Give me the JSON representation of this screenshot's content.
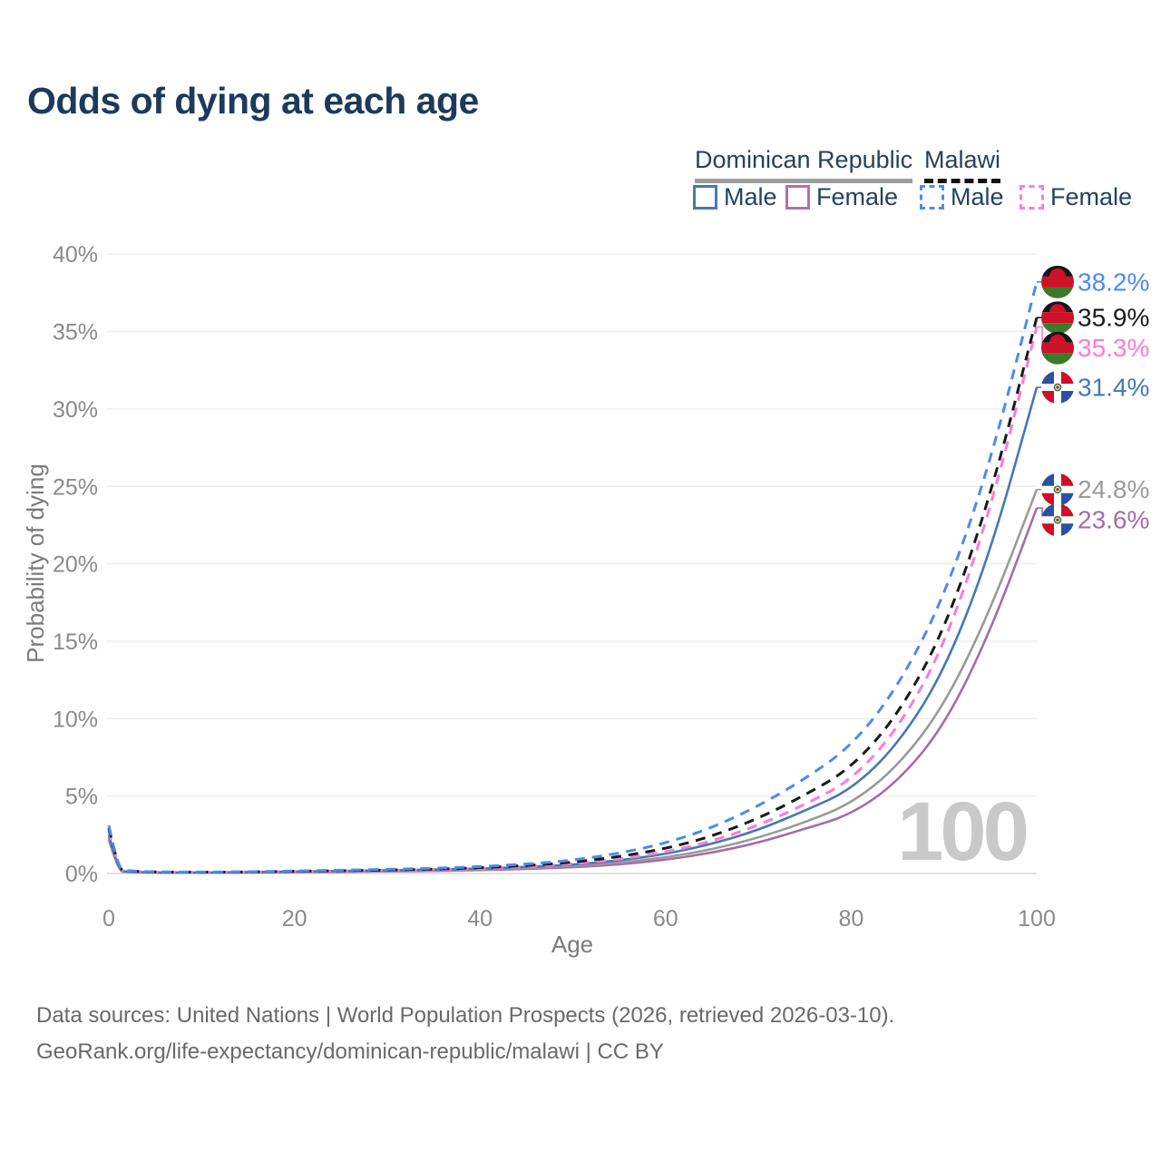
{
  "title": "Odds of dying at each age",
  "legend": {
    "groups": [
      {
        "label": "Dominican Republic",
        "line_style": "solid",
        "line_color": "#9e9e9e",
        "items": [
          {
            "label": "Male",
            "color": "#4678b5",
            "dashed": false
          },
          {
            "label": "Female",
            "color": "#b06fad",
            "dashed": false
          }
        ]
      },
      {
        "label": "Malawi",
        "line_style": "dashed",
        "line_color": "#141414",
        "items": [
          {
            "label": "Male",
            "color": "#4a8cf0",
            "dashed": true
          },
          {
            "label": "Female",
            "color": "#ff7ad9",
            "dashed": true
          }
        ]
      }
    ]
  },
  "watermark": "100",
  "footer": {
    "line1": "Data sources: United Nations | World Population Prospects (2026, retrieved 2026-03-10).",
    "line2": "GeoRank.org/life-expectancy/dominican-republic/malawi | CC BY"
  },
  "chart_data": {
    "type": "line",
    "title": "Odds of dying at each age",
    "xlabel": "Age",
    "ylabel": "Probability of dying",
    "xlim": [
      0,
      100
    ],
    "ylim": [
      0,
      40
    ],
    "x_ticks": [
      0,
      20,
      40,
      60,
      80,
      100
    ],
    "y_ticks": [
      0,
      5,
      10,
      15,
      20,
      25,
      30,
      35,
      40
    ],
    "y_tick_labels": [
      "0%",
      "5%",
      "10%",
      "15%",
      "20%",
      "25%",
      "30%",
      "35%",
      "40%"
    ],
    "grid": "horizontal",
    "legend_position": "top-right",
    "ages": [
      0,
      1,
      2,
      5,
      10,
      15,
      20,
      25,
      30,
      35,
      40,
      45,
      50,
      55,
      60,
      65,
      70,
      75,
      80,
      85,
      90,
      95,
      100
    ],
    "series": [
      {
        "name": "Malawi Male",
        "country": "Malawi",
        "sex": "Male",
        "color": "#4a8cf0",
        "dashed": true,
        "end_label": "38.2%",
        "end_value": 38.2,
        "values": [
          3.1,
          0.28,
          0.17,
          0.1,
          0.09,
          0.11,
          0.16,
          0.21,
          0.27,
          0.33,
          0.44,
          0.6,
          0.85,
          1.3,
          1.95,
          2.95,
          4.35,
          6.1,
          8.2,
          12.0,
          17.8,
          26.5,
          38.2
        ]
      },
      {
        "name": "Malawi Both sexes",
        "country": "Malawi",
        "sex": "Both",
        "color": "#1a1a1a",
        "dashed": true,
        "end_label": "35.9%",
        "end_value": 35.9,
        "values": [
          2.95,
          0.26,
          0.16,
          0.09,
          0.08,
          0.1,
          0.14,
          0.18,
          0.22,
          0.28,
          0.37,
          0.51,
          0.72,
          1.08,
          1.6,
          2.4,
          3.55,
          5.05,
          6.8,
          10.2,
          15.6,
          24.3,
          35.9
        ]
      },
      {
        "name": "Malawi Female",
        "country": "Malawi",
        "sex": "Female",
        "color": "#ff7ad9",
        "dashed": true,
        "end_label": "35.3%",
        "end_value": 35.3,
        "values": [
          2.8,
          0.24,
          0.15,
          0.09,
          0.075,
          0.09,
          0.12,
          0.15,
          0.19,
          0.24,
          0.32,
          0.44,
          0.62,
          0.92,
          1.38,
          2.08,
          3.1,
          4.45,
          6.0,
          9.3,
          14.6,
          23.4,
          35.3
        ]
      },
      {
        "name": "Dominican Republic Male",
        "country": "Dominican Republic",
        "sex": "Male",
        "color": "#4678b5",
        "dashed": false,
        "end_label": "31.4%",
        "end_value": 31.4,
        "values": [
          2.5,
          0.19,
          0.11,
          0.065,
          0.055,
          0.085,
          0.13,
          0.16,
          0.2,
          0.25,
          0.31,
          0.42,
          0.57,
          0.83,
          1.25,
          1.9,
          2.8,
          4.05,
          5.4,
          8.3,
          13.0,
          20.7,
          31.4
        ]
      },
      {
        "name": "Dominican Republic Both sexes",
        "country": "Dominican Republic",
        "sex": "Both",
        "color": "#9a9a9a",
        "dashed": false,
        "end_label": "24.8%",
        "end_value": 24.8,
        "values": [
          2.35,
          0.17,
          0.1,
          0.06,
          0.05,
          0.07,
          0.105,
          0.13,
          0.16,
          0.2,
          0.26,
          0.35,
          0.48,
          0.69,
          1.03,
          1.55,
          2.3,
          3.3,
          4.5,
          6.9,
          10.8,
          17.0,
          24.8
        ]
      },
      {
        "name": "Dominican Republic Female",
        "country": "Dominican Republic",
        "sex": "Female",
        "color": "#a86ba6",
        "dashed": false,
        "end_label": "23.6%",
        "end_value": 23.6,
        "values": [
          2.2,
          0.15,
          0.09,
          0.055,
          0.045,
          0.06,
          0.085,
          0.105,
          0.13,
          0.16,
          0.215,
          0.29,
          0.4,
          0.57,
          0.88,
          1.33,
          1.98,
          2.88,
          3.8,
          5.9,
          9.5,
          15.6,
          23.6
        ]
      }
    ]
  }
}
